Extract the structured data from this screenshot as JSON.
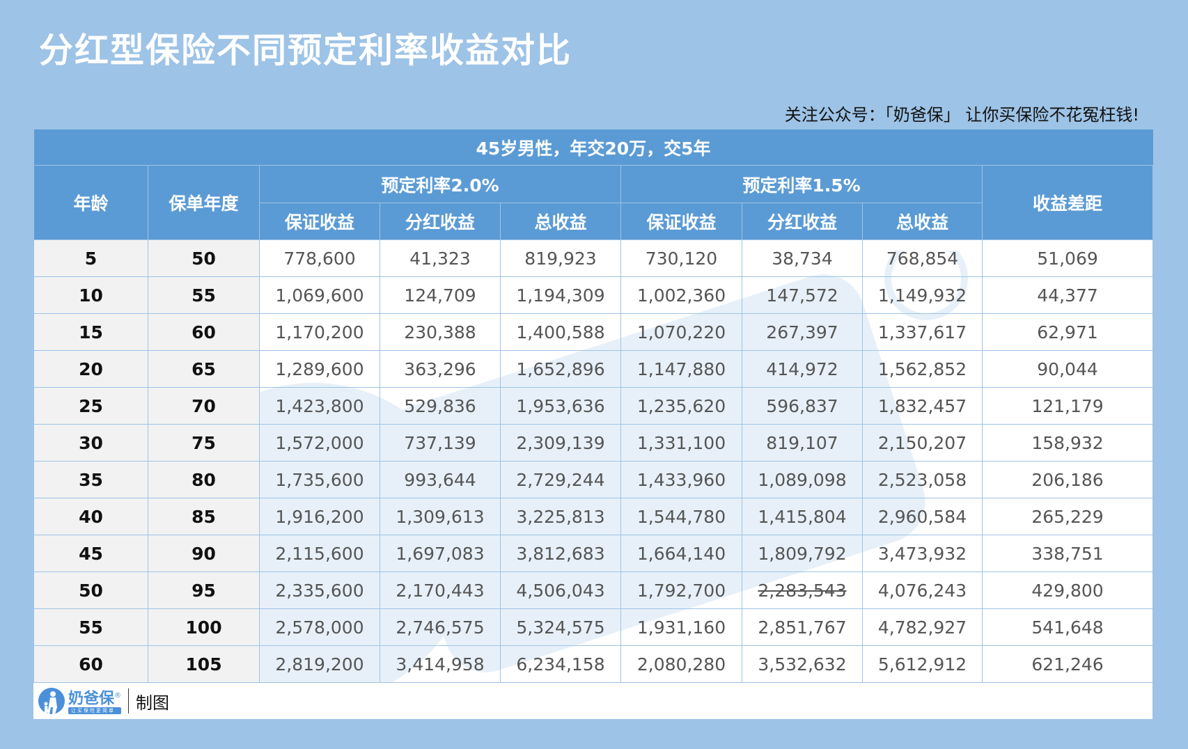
{
  "title": "分红型保险不同预定利率收益对比",
  "slogan": "关注公众号：「奶爸保」 让你买保险不花冤枉钱!",
  "table": {
    "subtitle": "45岁男性，年交20万，交5年",
    "headers": {
      "age": "年龄",
      "policy_year": "保单年度",
      "group_a": "预定利率2.0%",
      "group_b": "预定利率1.5%",
      "gap": "收益差距",
      "sub": [
        "保证收益",
        "分红收益",
        "总收益",
        "保证收益",
        "分红收益",
        "总收益"
      ]
    },
    "rows": [
      [
        "5",
        "50",
        "778,600",
        "41,323",
        "819,923",
        "730,120",
        "38,734",
        "768,854",
        "51,069"
      ],
      [
        "10",
        "55",
        "1,069,600",
        "124,709",
        "1,194,309",
        "1,002,360",
        "147,572",
        "1,149,932",
        "44,377"
      ],
      [
        "15",
        "60",
        "1,170,200",
        "230,388",
        "1,400,588",
        "1,070,220",
        "267,397",
        "1,337,617",
        "62,971"
      ],
      [
        "20",
        "65",
        "1,289,600",
        "363,296",
        "1,652,896",
        "1,147,880",
        "414,972",
        "1,562,852",
        "90,044"
      ],
      [
        "25",
        "70",
        "1,423,800",
        "529,836",
        "1,953,636",
        "1,235,620",
        "596,837",
        "1,832,457",
        "121,179"
      ],
      [
        "30",
        "75",
        "1,572,000",
        "737,139",
        "2,309,139",
        "1,331,100",
        "819,107",
        "2,150,207",
        "158,932"
      ],
      [
        "35",
        "80",
        "1,735,600",
        "993,644",
        "2,729,244",
        "1,433,960",
        "1,089,098",
        "2,523,058",
        "206,186"
      ],
      [
        "40",
        "85",
        "1,916,200",
        "1,309,613",
        "3,225,813",
        "1,544,780",
        "1,415,804",
        "2,960,584",
        "265,229"
      ],
      [
        "45",
        "90",
        "2,115,600",
        "1,697,083",
        "3,812,683",
        "1,664,140",
        "1,809,792",
        "3,473,932",
        "338,751"
      ],
      [
        "50",
        "95",
        "2,335,600",
        "2,170,443",
        "4,506,043",
        "1,792,700",
        "2,283,543",
        "4,076,243",
        "429,800"
      ],
      [
        "55",
        "100",
        "2,578,000",
        "2,746,575",
        "5,324,575",
        "1,931,160",
        "2,851,767",
        "4,782,927",
        "541,648"
      ],
      [
        "60",
        "105",
        "2,819,200",
        "3,414,958",
        "6,234,158",
        "2,080,280",
        "3,532,632",
        "5,612,912",
        "621,246"
      ]
    ],
    "strikethrough_cells": [
      {
        "row": 9,
        "col": 6
      }
    ]
  },
  "footer": {
    "logo_name": "奶爸保",
    "logo_mark": "®",
    "logo_tagline": "让买保险更简单",
    "made_by": "制图"
  },
  "watermark": {
    "name": "奶爸保",
    "mark": "®",
    "tagline": "让买保险更简单"
  },
  "colors": {
    "page_bg": "#9dc3e6",
    "header_bg": "#5b9bd5",
    "key_col_bg": "#f2f2f2",
    "grid": "#9dc3e6",
    "number_text": "#555555",
    "brand": "#4a90d9"
  }
}
